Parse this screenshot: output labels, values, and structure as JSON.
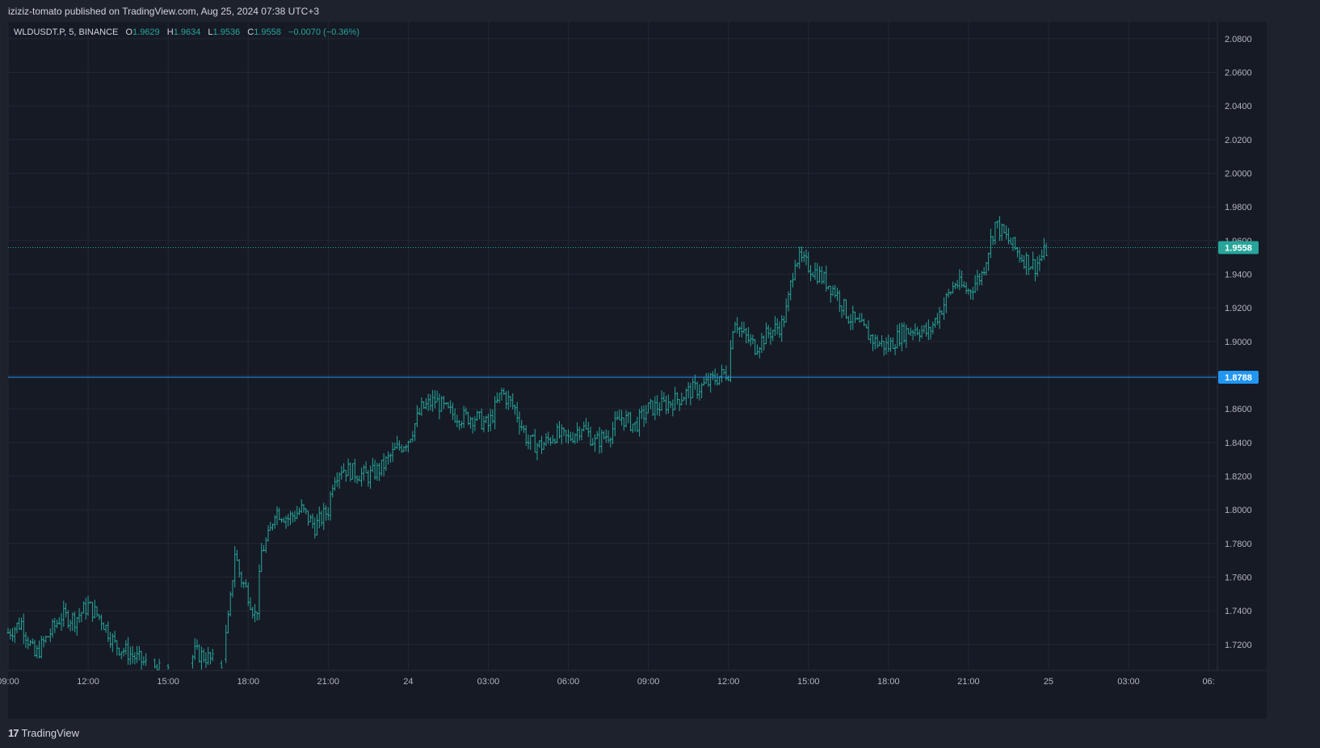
{
  "header": {
    "publish_line": "iziziz-tomato published on TradingView.com, Aug 25, 2024 07:38 UTC+3"
  },
  "legend": {
    "symbol": "WLDUSDT.P, 5, BINANCE",
    "open_label": "O",
    "open": "1.9629",
    "high_label": "H",
    "high": "1.9634",
    "low_label": "L",
    "low": "1.9536",
    "close_label": "C",
    "close": "1.9558",
    "change": "−0.0070 (−0.36%)"
  },
  "footer": {
    "brand": "TradingView",
    "brand_mark": "17"
  },
  "colors": {
    "background": "#161a25",
    "grid": "#232733",
    "candle": "#26a69a",
    "last_price": "#26a69a",
    "level_line": "#2196f3"
  },
  "chart_data": {
    "type": "line",
    "title": "",
    "xlabel": "",
    "ylabel": "",
    "symbol": "WLDUSDT.P",
    "interval": "5",
    "exchange": "BINANCE",
    "ylim": [
      1.705,
      2.09
    ],
    "y_ticks": [
      "1.7200",
      "1.7400",
      "1.7600",
      "1.7800",
      "1.8000",
      "1.8200",
      "1.8400",
      "1.8600",
      "1.8800",
      "1.9000",
      "1.9200",
      "1.9400",
      "1.9600",
      "1.9800",
      "2.0000",
      "2.0200",
      "2.0400",
      "2.0600",
      "2.0800"
    ],
    "x_ticks": [
      {
        "label": "09:00",
        "hour": 0
      },
      {
        "label": "12:00",
        "hour": 3
      },
      {
        "label": "15:00",
        "hour": 6
      },
      {
        "label": "18:00",
        "hour": 9
      },
      {
        "label": "21:00",
        "hour": 12
      },
      {
        "label": "24",
        "hour": 15
      },
      {
        "label": "03:00",
        "hour": 18
      },
      {
        "label": "06:00",
        "hour": 21
      },
      {
        "label": "09:00",
        "hour": 24
      },
      {
        "label": "12:00",
        "hour": 27
      },
      {
        "label": "15:00",
        "hour": 30
      },
      {
        "label": "18:00",
        "hour": 33
      },
      {
        "label": "21:00",
        "hour": 36
      },
      {
        "label": "25",
        "hour": 39
      },
      {
        "label": "03:00",
        "hour": 42
      },
      {
        "label": "06:",
        "hour": 45
      }
    ],
    "x_range_hours": [
      0,
      45.3
    ],
    "horizontal_level": {
      "value": 1.8788,
      "label": "1.8788"
    },
    "last_price": {
      "value": 1.9558,
      "label": "1.9558"
    },
    "grid": true,
    "price_path": [
      [
        0.0,
        1.727
      ],
      [
        0.5,
        1.733
      ],
      [
        1.0,
        1.713
      ],
      [
        1.5,
        1.725
      ],
      [
        2.0,
        1.737
      ],
      [
        2.5,
        1.735
      ],
      [
        3.0,
        1.743
      ],
      [
        3.5,
        1.735
      ],
      [
        4.0,
        1.72
      ],
      [
        4.5,
        1.715
      ],
      [
        5.0,
        1.71
      ],
      [
        5.5,
        1.705
      ],
      [
        6.0,
        1.703
      ],
      [
        6.5,
        1.701
      ],
      [
        7.0,
        1.715
      ],
      [
        7.5,
        1.712
      ],
      [
        8.0,
        1.705
      ],
      [
        8.3,
        1.74
      ],
      [
        8.5,
        1.775
      ],
      [
        8.7,
        1.76
      ],
      [
        9.0,
        1.75
      ],
      [
        9.3,
        1.735
      ],
      [
        9.5,
        1.775
      ],
      [
        9.8,
        1.785
      ],
      [
        10.0,
        1.8
      ],
      [
        10.5,
        1.795
      ],
      [
        11.0,
        1.8
      ],
      [
        11.5,
        1.79
      ],
      [
        12.0,
        1.8
      ],
      [
        12.2,
        1.82
      ],
      [
        12.5,
        1.825
      ],
      [
        13.0,
        1.822
      ],
      [
        13.5,
        1.82
      ],
      [
        14.0,
        1.825
      ],
      [
        14.5,
        1.835
      ],
      [
        15.0,
        1.842
      ],
      [
        15.5,
        1.86
      ],
      [
        16.0,
        1.865
      ],
      [
        16.5,
        1.858
      ],
      [
        17.0,
        1.855
      ],
      [
        17.5,
        1.855
      ],
      [
        18.0,
        1.85
      ],
      [
        18.5,
        1.87
      ],
      [
        19.0,
        1.86
      ],
      [
        19.5,
        1.84
      ],
      [
        20.0,
        1.838
      ],
      [
        20.5,
        1.845
      ],
      [
        21.0,
        1.842
      ],
      [
        21.5,
        1.85
      ],
      [
        22.0,
        1.84
      ],
      [
        22.5,
        1.845
      ],
      [
        23.0,
        1.855
      ],
      [
        23.5,
        1.85
      ],
      [
        24.0,
        1.86
      ],
      [
        24.5,
        1.862
      ],
      [
        25.0,
        1.865
      ],
      [
        25.5,
        1.87
      ],
      [
        26.0,
        1.873
      ],
      [
        26.5,
        1.878
      ],
      [
        27.0,
        1.882
      ],
      [
        27.2,
        1.915
      ],
      [
        27.5,
        1.905
      ],
      [
        28.0,
        1.897
      ],
      [
        28.5,
        1.905
      ],
      [
        29.0,
        1.91
      ],
      [
        29.2,
        1.92
      ],
      [
        29.5,
        1.95
      ],
      [
        30.0,
        1.945
      ],
      [
        30.5,
        1.938
      ],
      [
        31.0,
        1.93
      ],
      [
        31.5,
        1.915
      ],
      [
        32.0,
        1.908
      ],
      [
        32.5,
        1.9
      ],
      [
        33.0,
        1.897
      ],
      [
        33.5,
        1.905
      ],
      [
        34.0,
        1.908
      ],
      [
        34.5,
        1.905
      ],
      [
        35.0,
        1.92
      ],
      [
        35.5,
        1.935
      ],
      [
        36.0,
        1.93
      ],
      [
        36.5,
        1.94
      ],
      [
        37.0,
        1.97
      ],
      [
        37.5,
        1.96
      ],
      [
        38.0,
        1.95
      ],
      [
        38.5,
        1.945
      ],
      [
        39.0,
        1.956
      ]
    ]
  }
}
